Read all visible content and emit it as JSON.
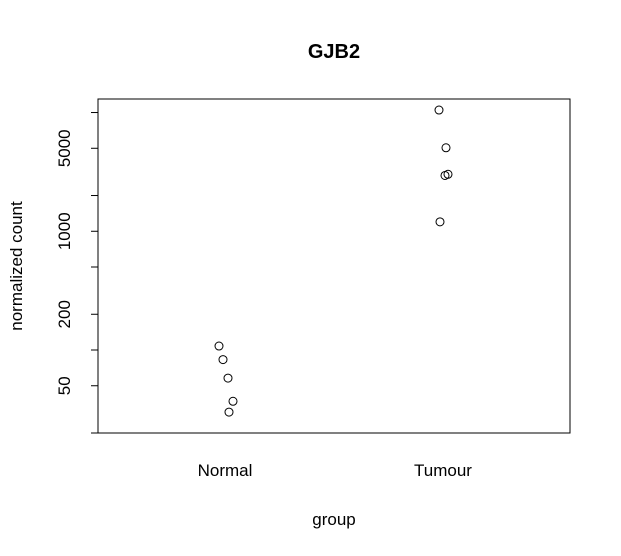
{
  "chart_data": {
    "type": "scatter",
    "title": "GJB2",
    "xlabel": "group",
    "ylabel": "normalized count",
    "categories": [
      "Normal",
      "Tumour"
    ],
    "y_scale": "log",
    "y_ticks": [
      50,
      200,
      1000,
      5000
    ],
    "y_tick_labels": [
      "50",
      "200",
      "1000",
      "5000"
    ],
    "ylim": [
      20,
      13000
    ],
    "grid": false,
    "points": [
      {
        "category": "Normal",
        "y": 108
      },
      {
        "category": "Normal",
        "y": 83
      },
      {
        "category": "Normal",
        "y": 58
      },
      {
        "category": "Normal",
        "y": 37
      },
      {
        "category": "Normal",
        "y": 30
      },
      {
        "category": "Tumour",
        "y": 10500
      },
      {
        "category": "Tumour",
        "y": 5050
      },
      {
        "category": "Tumour",
        "y": 3020
      },
      {
        "category": "Tumour",
        "y": 2950
      },
      {
        "category": "Tumour",
        "y": 1200
      }
    ]
  }
}
